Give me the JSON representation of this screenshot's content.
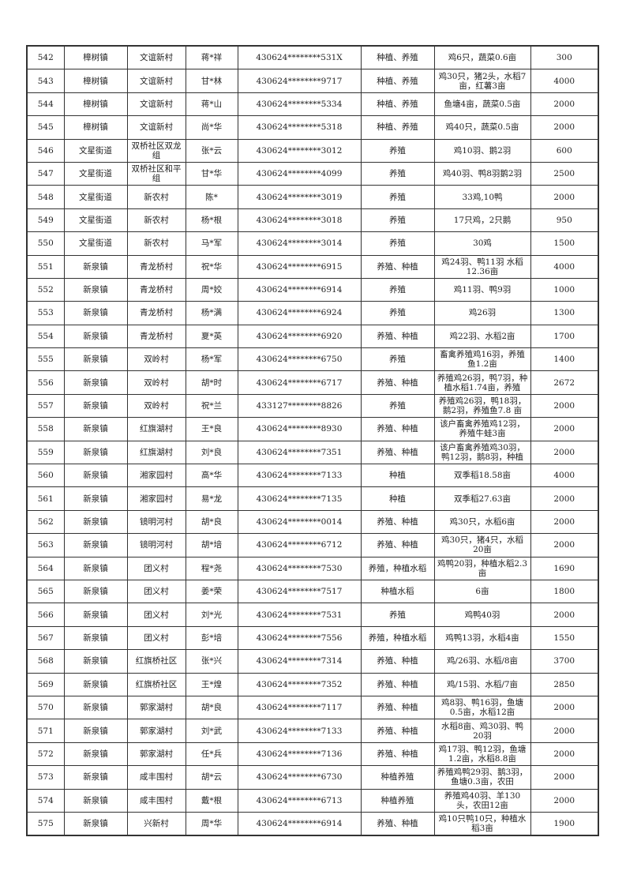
{
  "rows": [
    [
      "542",
      "樟树镇",
      "文谊新村",
      "蒋*祥",
      "430624********531X",
      "种植、养殖",
      "鸡6只，蔬菜0.6亩",
      "300"
    ],
    [
      "543",
      "樟树镇",
      "文谊新村",
      "甘*林",
      "430624********9717",
      "种植、养殖",
      "鸡30只，猪2头，水稻7亩，红薯3亩",
      "4000"
    ],
    [
      "544",
      "樟树镇",
      "文谊新村",
      "蒋*山",
      "430624********5334",
      "种植、养殖",
      "鱼塘4亩，蔬菜0.5亩",
      "2000"
    ],
    [
      "545",
      "樟树镇",
      "文谊新村",
      "尚*华",
      "430624********5318",
      "种植、养殖",
      "鸡40只，蔬菜0.5亩",
      "2000"
    ],
    [
      "546",
      "文星街道",
      "双桥社区双龙组",
      "张*云",
      "430624********3012",
      "养殖",
      "鸡10羽、鹅2羽",
      "600"
    ],
    [
      "547",
      "文星街道",
      "双桥社区和平组",
      "甘*华",
      "430624********4099",
      "养殖",
      "鸡40羽、鸭8羽鹅2羽",
      "2500"
    ],
    [
      "548",
      "文星街道",
      "新农村",
      "陈*",
      "430624********3019",
      "养殖",
      "33鸡,10鸭",
      "2000"
    ],
    [
      "549",
      "文星街道",
      "新农村",
      "杨*根",
      "430624********3018",
      "养殖",
      "17只鸡，2只鹅",
      "950"
    ],
    [
      "550",
      "文星街道",
      "新农村",
      "马*军",
      "430624********3014",
      "养殖",
      "30鸡",
      "1500"
    ],
    [
      "551",
      "新泉镇",
      "青龙桥村",
      "祝*华",
      "430624********6915",
      "养殖、种植",
      "鸡24羽、鸭11羽 水稻12.36亩",
      "4000"
    ],
    [
      "552",
      "新泉镇",
      "青龙桥村",
      "周*姣",
      "430624********6914",
      "养殖",
      "鸡11羽、鸭9羽",
      "1000"
    ],
    [
      "553",
      "新泉镇",
      "青龙桥村",
      "杨*满",
      "430624********6924",
      "养殖",
      "鸡26羽",
      "1300"
    ],
    [
      "554",
      "新泉镇",
      "青龙桥村",
      "夏*英",
      "430624********6920",
      "养殖、种植",
      "鸡22羽、水稻2亩",
      "1700"
    ],
    [
      "555",
      "新泉镇",
      "双岭村",
      "杨*军",
      "430624********6750",
      "养殖",
      "畜禽养殖鸡16羽，养殖鱼1.2亩",
      "1400"
    ],
    [
      "556",
      "新泉镇",
      "双岭村",
      "胡*时",
      "430624********6717",
      "养殖、种植",
      "养殖鸡26羽，鸭7羽，种植水稻1.74亩，养殖",
      "2672"
    ],
    [
      "557",
      "新泉镇",
      "双岭村",
      "祝*兰",
      "433127********8826",
      "养殖",
      "养殖鸡26羽，鸭18羽，鹅2羽，养殖鱼7.8 亩",
      "2000"
    ],
    [
      "558",
      "新泉镇",
      "红旗湖村",
      "王*良",
      "430624********8930",
      "养殖、种植",
      "该户畜禽养殖鸡12羽，养殖牛蛙3亩",
      "2000"
    ],
    [
      "559",
      "新泉镇",
      "红旗湖村",
      "刘*良",
      "430624********7351",
      "养殖、种植",
      "该户畜禽养殖鸡30羽，鸭12羽，鹅8羽，种植",
      "2000"
    ],
    [
      "560",
      "新泉镇",
      "湘家园村",
      "高*华",
      "430624********7133",
      "种植",
      "双季稻18.58亩",
      "4000"
    ],
    [
      "561",
      "新泉镇",
      "湘家园村",
      "易*龙",
      "430624********7135",
      "种植",
      "双季稻27.63亩",
      "2000"
    ],
    [
      "562",
      "新泉镇",
      "镜明河村",
      "胡*良",
      "430624********0014",
      "养殖、种植",
      "鸡30只，水稻6亩",
      "2000"
    ],
    [
      "563",
      "新泉镇",
      "镜明河村",
      "胡*培",
      "430624********6712",
      "养殖、种植",
      "鸡30只，猪4只，水稻20亩",
      "2000"
    ],
    [
      "564",
      "新泉镇",
      "团义村",
      "程*尧",
      "430624********7530",
      "养殖，种植水稻",
      "鸡鸭20羽，种植水稻2.3亩",
      "1690"
    ],
    [
      "565",
      "新泉镇",
      "团义村",
      "姜*荣",
      "430624********7517",
      "种植水稻",
      "6亩",
      "1800"
    ],
    [
      "566",
      "新泉镇",
      "团义村",
      "刘*光",
      "430624********7531",
      "养殖",
      "鸡鸭40羽",
      "2000"
    ],
    [
      "567",
      "新泉镇",
      "团义村",
      "彭*培",
      "430624********7556",
      "养殖，种植水稻",
      "鸡鸭13羽，水稻4亩",
      "1550"
    ],
    [
      "568",
      "新泉镇",
      "红旗桥社区",
      "张*兴",
      "430624********7314",
      "养殖、种植",
      "鸡/26羽、水稻/8亩",
      "3700"
    ],
    [
      "569",
      "新泉镇",
      "红旗桥社区",
      "王*煌",
      "430624********7352",
      "养殖、种植",
      "鸡/15羽、水稻/7亩",
      "2850"
    ],
    [
      "570",
      "新泉镇",
      "郭家湖村",
      "胡*良",
      "430624********7117",
      "养殖、种植",
      "鸡8羽、鸭16羽，鱼塘0.5亩，水稻12亩",
      "2000"
    ],
    [
      "571",
      "新泉镇",
      "郭家湖村",
      "刘*武",
      "430624********7133",
      "养殖、种植",
      "水稻8亩、鸡30羽、鸭20羽",
      "2000"
    ],
    [
      "572",
      "新泉镇",
      "郭家湖村",
      "任*兵",
      "430624********7136",
      "养殖、种植",
      "鸡17羽、鸭12羽，鱼塘1.2亩，水稻8.8亩",
      "2000"
    ],
    [
      "573",
      "新泉镇",
      "咸丰围村",
      "胡*云",
      "430624********6730",
      "种植养殖",
      "养殖鸡鸭29羽、鹅3羽，鱼塘0.3亩，农田",
      "2000"
    ],
    [
      "574",
      "新泉镇",
      "咸丰围村",
      "戴*根",
      "430624********6713",
      "种植养殖",
      "养殖鸡40羽、羊130头，农田12亩",
      "2000"
    ],
    [
      "575",
      "新泉镇",
      "兴新村",
      "周*华",
      "430624********6914",
      "养殖、种植",
      "鸡10只鸭10只，种植水稻3亩",
      "1900"
    ]
  ]
}
